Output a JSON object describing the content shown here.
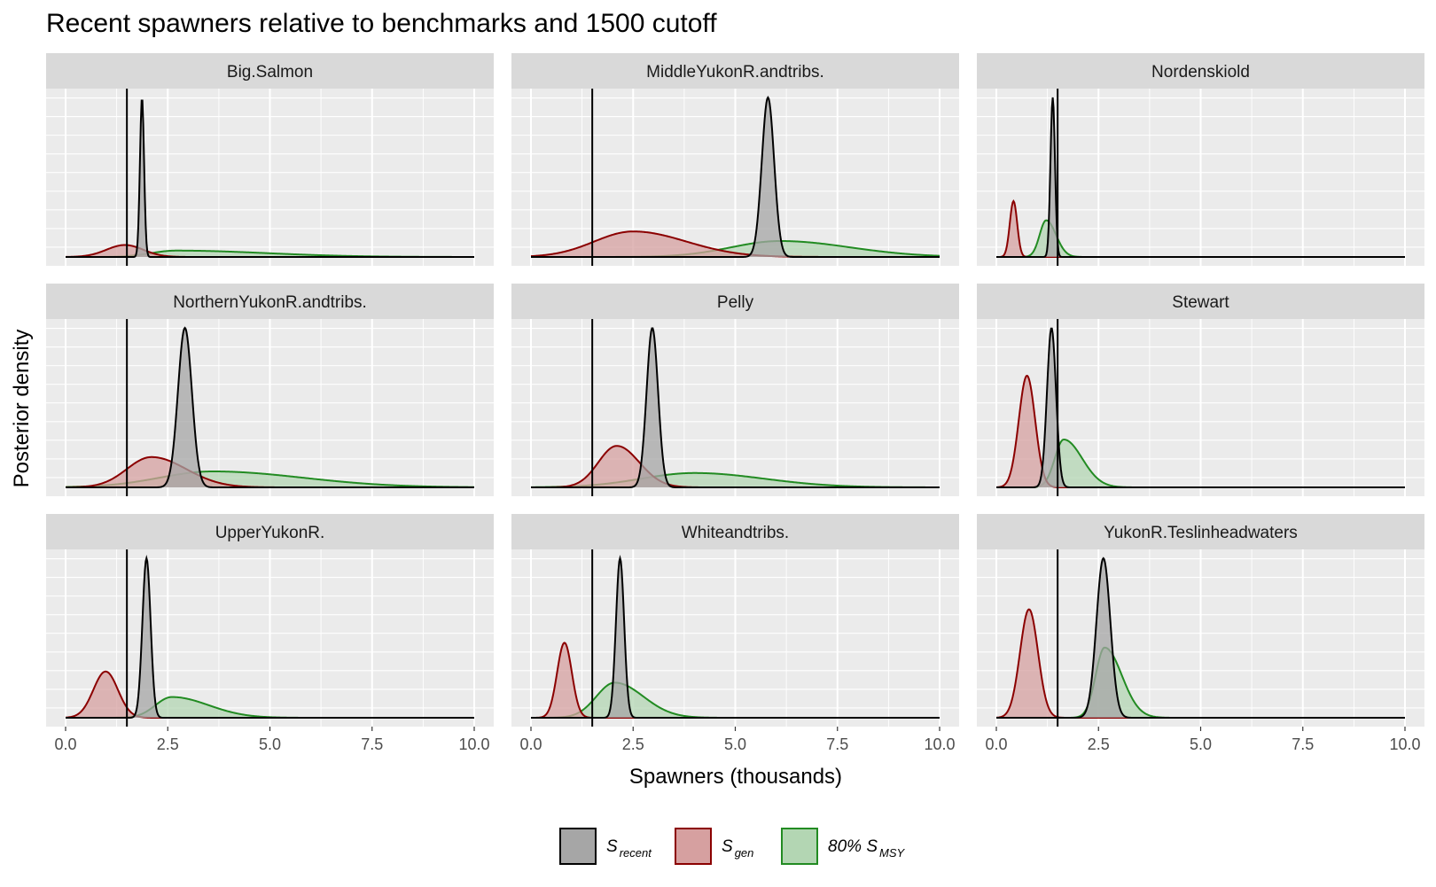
{
  "chart_data": {
    "type": "area",
    "title": "Recent spawners relative to benchmarks and 1500 cutoff",
    "xlabel": "Spawners (thousands)",
    "ylabel": "Posterior density",
    "xlim": [
      0,
      10
    ],
    "x_ticks": [
      0,
      2.5,
      5,
      7.5,
      10
    ],
    "x_tick_labels": [
      "0.0",
      "2.5",
      "5.0",
      "7.5",
      "10.0"
    ],
    "cutoff": 1.5,
    "grid": true,
    "legend_position": "bottom",
    "legend": [
      {
        "key": "recent",
        "base": "S",
        "sub": "recent",
        "prefix": "",
        "fill": "#a6a6a6",
        "stroke": "#000000"
      },
      {
        "key": "gen",
        "base": "S",
        "sub": "gen",
        "prefix": "",
        "fill": "#d6a0a0",
        "stroke": "#8b0000"
      },
      {
        "key": "msy",
        "base": "S",
        "sub": "MSY",
        "prefix": "80% ",
        "fill": "#b3d6b3",
        "stroke": "#228b22"
      }
    ],
    "panels": [
      {
        "name": "Big.Salmon",
        "recent": {
          "peak": 1.87,
          "w": 0.05,
          "h": 1.0
        },
        "gen": {
          "peak": 1.45,
          "w": 0.45,
          "h": 0.075
        },
        "msy": {
          "peak": 2.7,
          "wl": 0.6,
          "wr": 2.2,
          "h": 0.04
        }
      },
      {
        "name": "MiddleYukonR.andtribs.",
        "recent": {
          "peak": 5.8,
          "w": 0.15,
          "h": 1.0
        },
        "gen": {
          "peak": 2.5,
          "wl": 0.95,
          "wr": 1.3,
          "h": 0.16
        },
        "msy": {
          "peak": 6.1,
          "wl": 1.2,
          "wr": 1.7,
          "h": 0.1
        }
      },
      {
        "name": "Nordenskiold",
        "recent": {
          "peak": 1.38,
          "w": 0.055,
          "h": 1.0
        },
        "gen": {
          "peak": 0.42,
          "w": 0.09,
          "h": 0.35
        },
        "msy": {
          "peak": 1.22,
          "wl": 0.16,
          "wr": 0.24,
          "h": 0.23
        }
      },
      {
        "name": "NorthernYukonR.andtribs.",
        "recent": {
          "peak": 2.92,
          "w": 0.17,
          "h": 1.0
        },
        "gen": {
          "peak": 2.1,
          "wl": 0.6,
          "wr": 0.85,
          "h": 0.19
        },
        "msy": {
          "peak": 3.6,
          "wl": 1.3,
          "wr": 2.2,
          "h": 0.1
        }
      },
      {
        "name": "Pelly",
        "recent": {
          "peak": 2.97,
          "w": 0.14,
          "h": 1.0
        },
        "gen": {
          "peak": 2.1,
          "wl": 0.45,
          "wr": 0.55,
          "h": 0.26
        },
        "msy": {
          "peak": 4.0,
          "wl": 1.3,
          "wr": 1.7,
          "h": 0.09
        }
      },
      {
        "name": "Stewart",
        "recent": {
          "peak": 1.35,
          "w": 0.11,
          "h": 1.0
        },
        "gen": {
          "peak": 0.75,
          "w": 0.2,
          "h": 0.7
        },
        "msy": {
          "peak": 1.65,
          "wl": 0.22,
          "wr": 0.45,
          "h": 0.3
        }
      },
      {
        "name": "UpperYukonR.",
        "recent": {
          "peak": 1.98,
          "w": 0.1,
          "h": 1.0
        },
        "gen": {
          "peak": 0.98,
          "w": 0.3,
          "h": 0.29
        },
        "msy": {
          "peak": 2.6,
          "wl": 0.4,
          "wr": 0.9,
          "h": 0.13
        }
      },
      {
        "name": "Whiteandtribs.",
        "recent": {
          "peak": 2.18,
          "w": 0.1,
          "h": 1.0
        },
        "gen": {
          "peak": 0.82,
          "w": 0.18,
          "h": 0.47
        },
        "msy": {
          "peak": 2.05,
          "wl": 0.45,
          "wr": 0.7,
          "h": 0.22
        }
      },
      {
        "name": "YukonR.Teslinheadwaters",
        "recent": {
          "peak": 2.62,
          "w": 0.17,
          "h": 1.0
        },
        "gen": {
          "peak": 0.8,
          "w": 0.22,
          "h": 0.68
        },
        "msy": {
          "peak": 2.65,
          "wl": 0.22,
          "wr": 0.42,
          "h": 0.44
        }
      }
    ]
  }
}
